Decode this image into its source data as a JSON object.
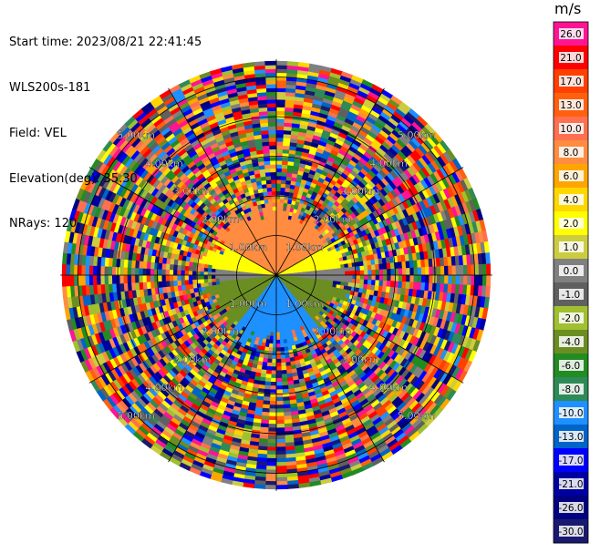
{
  "header": {
    "start_time": "Start time: 2023/08/21 22:41:45",
    "instrument": "WLS200s-181",
    "field": "Field: VEL",
    "elevation": "Elevation(deg): 35.30",
    "nrays": "NRays: 120"
  },
  "colorbar": {
    "unit": "m/s",
    "ticks": [
      "26.0",
      "21.0",
      "17.0",
      "13.0",
      "10.0",
      "8.0",
      "6.0",
      "4.0",
      "2.0",
      "1.0",
      "0.0",
      "-1.0",
      "-2.0",
      "-4.0",
      "-6.0",
      "-8.0",
      "-10.0",
      "-13.0",
      "-17.0",
      "-21.0",
      "-26.0",
      "-30.0"
    ],
    "colors": [
      "#ff1493",
      "#ff0000",
      "#ff4000",
      "#ff6010",
      "#ff7050",
      "#ff8c40",
      "#ffa500",
      "#ffd700",
      "#ffff00",
      "#cccc40",
      "#808080",
      "#606060",
      "#a0c030",
      "#6b8e23",
      "#228b22",
      "#2e8b57",
      "#1e90ff",
      "#0064c8",
      "#0000ff",
      "#0000a0",
      "#000080",
      "#191970"
    ]
  },
  "chart_data": {
    "type": "heatmap",
    "projection": "polar (PPI scan)",
    "field": "VEL",
    "units": "m/s",
    "nrays": 120,
    "elevation_deg": 35.3,
    "range_rings_km": [
      1.0,
      2.0,
      3.0,
      4.0,
      5.0
    ],
    "ring_labels": [
      "1.00km",
      "2.00km",
      "3.00km",
      "4.00km",
      "5.00km"
    ],
    "max_range_km": 5.4,
    "color_levels": [
      -30.0,
      -26.0,
      -21.0,
      -17.0,
      -13.0,
      -10.0,
      -8.0,
      -6.0,
      -4.0,
      -2.0,
      -1.0,
      0.0,
      1.0,
      2.0,
      4.0,
      6.0,
      8.0,
      10.0,
      13.0,
      17.0,
      21.0,
      26.0
    ],
    "coherent_region": {
      "description": "valid velocities within ~1.8 km; noise beyond",
      "sectors": [
        {
          "azimuth_deg": [
            300,
            60
          ],
          "velocity_ms": 8.0
        },
        {
          "azimuth_deg": [
            60,
            85
          ],
          "velocity_ms": 2.0
        },
        {
          "azimuth_deg": [
            275,
            300
          ],
          "velocity_ms": 2.0
        },
        {
          "azimuth_deg": [
            85,
            95
          ],
          "velocity_ms": 0.0
        },
        {
          "azimuth_deg": [
            265,
            275
          ],
          "velocity_ms": 0.0
        },
        {
          "azimuth_deg": [
            95,
            140
          ],
          "velocity_ms": -4.0
        },
        {
          "azimuth_deg": [
            220,
            265
          ],
          "velocity_ms": -4.0
        },
        {
          "azimuth_deg": [
            140,
            220
          ],
          "velocity_ms": -10.0
        }
      ]
    }
  }
}
